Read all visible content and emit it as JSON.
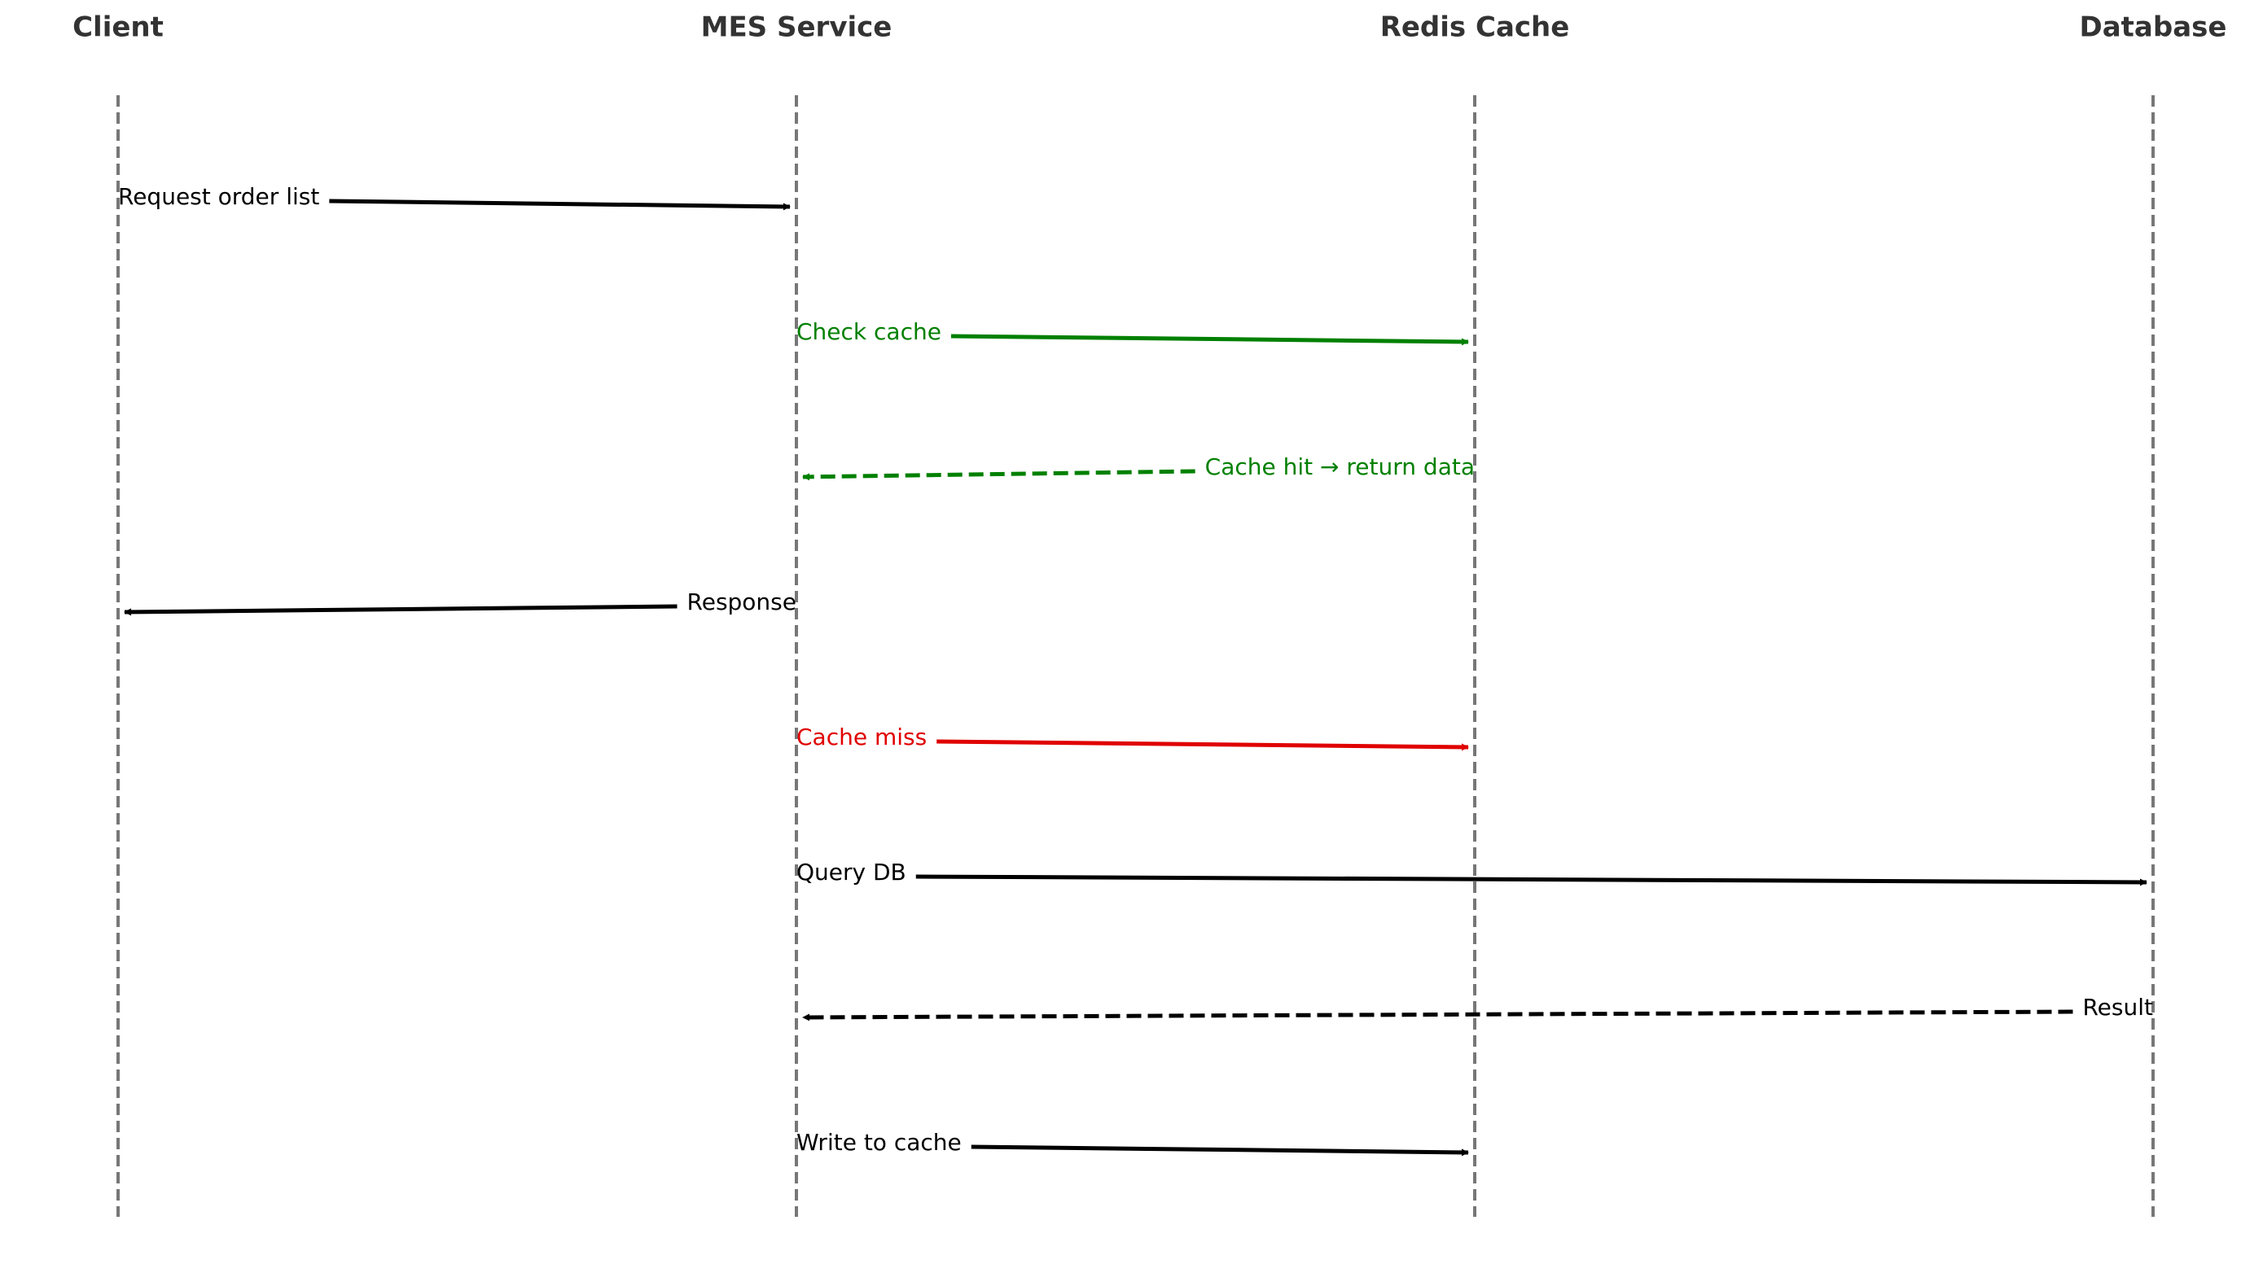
{
  "participants": [
    {
      "id": "client",
      "label": "Client"
    },
    {
      "id": "mes",
      "label": "MES Service"
    },
    {
      "id": "redis",
      "label": "Redis Cache"
    },
    {
      "id": "db",
      "label": "Database"
    }
  ],
  "colors": {
    "lifeline": "#777777",
    "default": "#000000",
    "hit": "#008000",
    "miss": "#e00000"
  },
  "messages": [
    {
      "from": "client",
      "to": "mes",
      "label": "Request order list",
      "style": "solid",
      "color": "#000000"
    },
    {
      "from": "mes",
      "to": "redis",
      "label": "Check cache",
      "style": "solid",
      "color": "#008000"
    },
    {
      "from": "redis",
      "to": "mes",
      "label": "Cache hit → return data",
      "style": "dashed",
      "color": "#008000"
    },
    {
      "from": "mes",
      "to": "client",
      "label": "Response",
      "style": "solid",
      "color": "#000000"
    },
    {
      "from": "mes",
      "to": "redis",
      "label": "Cache miss",
      "style": "solid",
      "color": "#e00000"
    },
    {
      "from": "mes",
      "to": "db",
      "label": "Query DB",
      "style": "solid",
      "color": "#000000"
    },
    {
      "from": "db",
      "to": "mes",
      "label": "Result",
      "style": "dashed",
      "color": "#000000"
    },
    {
      "from": "mes",
      "to": "redis",
      "label": "Write to cache",
      "style": "solid",
      "color": "#000000"
    }
  ]
}
